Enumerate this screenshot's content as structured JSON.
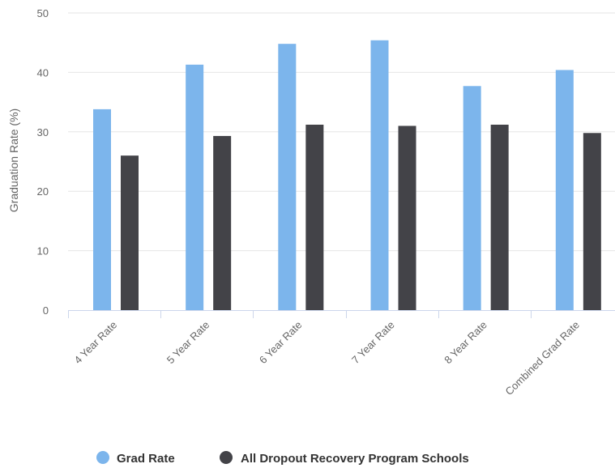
{
  "chart_data": {
    "type": "bar",
    "categories": [
      "4 Year Rate",
      "5 Year Rate",
      "6 Year Rate",
      "7 Year Rate",
      "8 Year Rate",
      "Combined Grad Rate"
    ],
    "series": [
      {
        "name": "Grad Rate",
        "color": "#7cb5ec",
        "values": [
          33.8,
          41.3,
          44.8,
          45.4,
          37.7,
          40.4
        ]
      },
      {
        "name": "All Dropout Recovery Program Schools",
        "color": "#434348",
        "values": [
          26.0,
          29.3,
          31.2,
          31.0,
          31.2,
          29.8
        ]
      }
    ],
    "title": "",
    "xlabel": "",
    "ylabel": "Graduation Rate (%)",
    "ylim": [
      0,
      50
    ],
    "yticks": [
      0,
      10,
      20,
      30,
      40,
      50
    ],
    "grid": true,
    "legend_position": "bottom-center"
  }
}
